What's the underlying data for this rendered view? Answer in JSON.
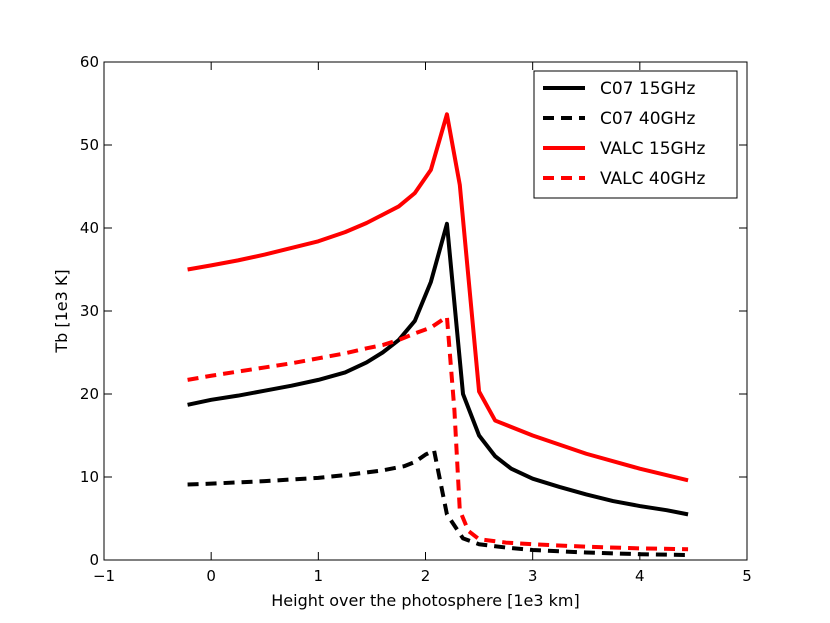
{
  "chart_data": {
    "type": "line",
    "title": "",
    "xlabel": "Height over the photosphere [1e3 km]",
    "ylabel": "Tb [1e3 K]",
    "xlim": [
      -1,
      5
    ],
    "ylim": [
      0,
      60
    ],
    "xticks": [
      -1,
      0,
      1,
      2,
      3,
      4,
      5
    ],
    "yticks": [
      0,
      10,
      20,
      30,
      40,
      50,
      60
    ],
    "xtick_labels": [
      "−1",
      "0",
      "1",
      "2",
      "3",
      "4",
      "5"
    ],
    "ytick_labels": [
      "0",
      "10",
      "20",
      "30",
      "40",
      "50",
      "60"
    ],
    "grid": false,
    "legend_position": "top-right",
    "series": [
      {
        "name": "C07 15GHz",
        "color": "#000000",
        "style": "solid",
        "x": [
          -0.22,
          0.0,
          0.25,
          0.5,
          0.75,
          1.0,
          1.25,
          1.45,
          1.6,
          1.75,
          1.9,
          2.05,
          2.2,
          2.35,
          2.5,
          2.65,
          2.8,
          3.0,
          3.25,
          3.5,
          3.75,
          4.0,
          4.25,
          4.45
        ],
        "y": [
          18.7,
          19.3,
          19.8,
          20.4,
          21.0,
          21.7,
          22.6,
          23.8,
          25.0,
          26.5,
          28.8,
          33.5,
          40.5,
          20.0,
          15.0,
          12.5,
          11.0,
          9.8,
          8.8,
          7.9,
          7.1,
          6.5,
          6.0,
          5.5
        ]
      },
      {
        "name": "C07 40GHz",
        "color": "#000000",
        "style": "dashed",
        "x": [
          -0.22,
          0.0,
          0.5,
          1.0,
          1.3,
          1.6,
          1.8,
          1.9,
          2.0,
          2.08,
          2.2,
          2.35,
          2.5,
          2.75,
          3.0,
          3.5,
          4.0,
          4.45
        ],
        "y": [
          9.1,
          9.2,
          9.5,
          9.9,
          10.3,
          10.8,
          11.3,
          11.8,
          12.7,
          13.2,
          5.5,
          2.6,
          1.9,
          1.5,
          1.2,
          0.9,
          0.7,
          0.6
        ]
      },
      {
        "name": "VALC 15GHz",
        "color": "#ff0000",
        "style": "solid",
        "x": [
          -0.22,
          0.0,
          0.25,
          0.5,
          0.75,
          1.0,
          1.25,
          1.45,
          1.6,
          1.75,
          1.9,
          2.05,
          2.2,
          2.32,
          2.5,
          2.65,
          3.0,
          3.5,
          4.0,
          4.45
        ],
        "y": [
          35.0,
          35.5,
          36.1,
          36.8,
          37.6,
          38.4,
          39.5,
          40.6,
          41.6,
          42.6,
          44.2,
          47.0,
          53.7,
          45.2,
          20.3,
          16.8,
          15.0,
          12.8,
          11.0,
          9.6
        ]
      },
      {
        "name": "VALC 40GHz",
        "color": "#ff0000",
        "style": "dashed",
        "x": [
          -0.22,
          0.0,
          0.25,
          0.5,
          0.75,
          1.0,
          1.25,
          1.45,
          1.6,
          1.75,
          1.9,
          2.05,
          2.2,
          2.27,
          2.32,
          2.4,
          2.5,
          2.75,
          3.0,
          3.5,
          4.0,
          4.45
        ],
        "y": [
          21.7,
          22.2,
          22.7,
          23.2,
          23.7,
          24.3,
          24.9,
          25.5,
          25.9,
          26.5,
          27.3,
          28.0,
          29.3,
          18.0,
          6.0,
          3.5,
          2.5,
          2.1,
          1.9,
          1.6,
          1.4,
          1.3
        ]
      }
    ]
  }
}
